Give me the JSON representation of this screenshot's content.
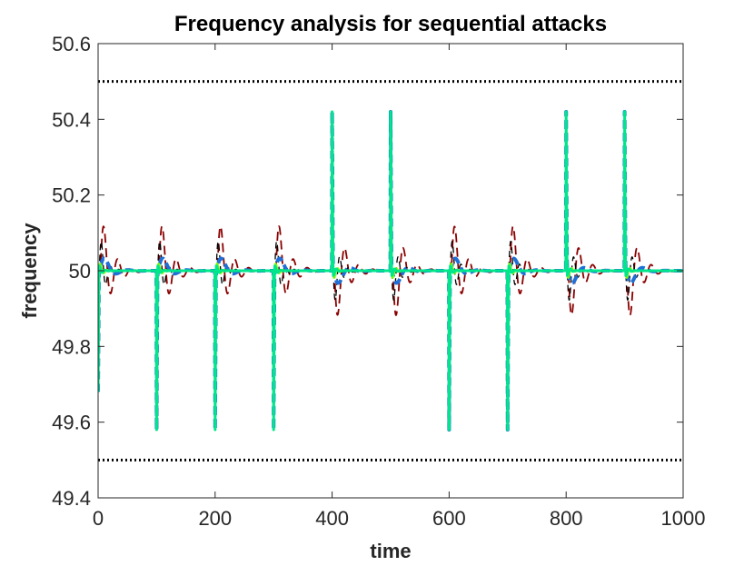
{
  "chart_data": {
    "type": "line",
    "title": "Frequency analysis for sequential attacks",
    "xlabel": "time",
    "ylabel": "frequency",
    "xlim": [
      0,
      1000
    ],
    "ylim": [
      49.4,
      50.6
    ],
    "xticks": [
      0,
      200,
      400,
      600,
      800,
      1000
    ],
    "yticks": [
      49.4,
      49.6,
      49.8,
      50,
      50.2,
      50.4,
      50.6
    ],
    "xtick_labels": [
      "0",
      "200",
      "400",
      "600",
      "800",
      "1000"
    ],
    "ytick_labels": [
      "49.4",
      "49.6",
      "49.8",
      "50",
      "50.2",
      "50.4",
      "50.6"
    ],
    "grid": false,
    "box": true,
    "thresholds": [
      {
        "value": 50.5,
        "style": "dotted",
        "color": "#000000"
      },
      {
        "value": 49.5,
        "style": "dotted",
        "color": "#000000"
      }
    ],
    "attacks": [
      {
        "t": 0,
        "dir": "down",
        "peak": 49.68
      },
      {
        "t": 100,
        "dir": "down",
        "peak": 49.58
      },
      {
        "t": 200,
        "dir": "down",
        "peak": 49.58
      },
      {
        "t": 300,
        "dir": "down",
        "peak": 49.58
      },
      {
        "t": 400,
        "dir": "up",
        "peak": 50.42
      },
      {
        "t": 500,
        "dir": "up",
        "peak": 50.42
      },
      {
        "t": 600,
        "dir": "down",
        "peak": 49.58
      },
      {
        "t": 700,
        "dir": "down",
        "peak": 49.58
      },
      {
        "t": 800,
        "dir": "up",
        "peak": 50.42
      },
      {
        "t": 900,
        "dir": "up",
        "peak": 50.42
      }
    ],
    "series": [
      {
        "color": "#8B0000",
        "dash": "10,6",
        "width": 1.8,
        "amp": 0.16,
        "tau": 18,
        "period": 24,
        "lag": 4
      },
      {
        "color": "#000000",
        "dash": "7,5",
        "width": 1.3,
        "amp": 0.11,
        "tau": 10,
        "period": 15,
        "lag": 2
      },
      {
        "color": "#1f6fd6",
        "dash": "9,5",
        "width": 4,
        "amp": 0.06,
        "tau": 14,
        "period": 40,
        "lag": 3
      },
      {
        "color": "#7CFC00",
        "dash": "",
        "width": 2,
        "amp": 0.03,
        "tau": 6,
        "period": 12,
        "lag": 1
      },
      {
        "color": "#00e68a",
        "dash": "",
        "width": 3,
        "amp": 0.02,
        "tau": 5,
        "period": 10,
        "lag": 0
      }
    ],
    "nominal": 50
  }
}
